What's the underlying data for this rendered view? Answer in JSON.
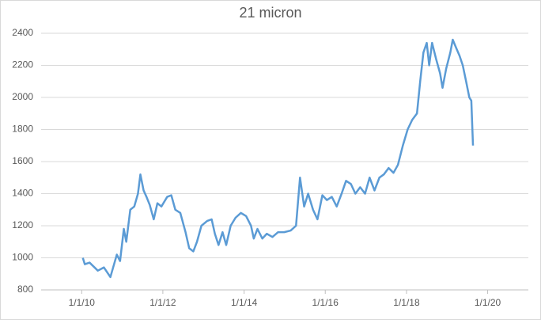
{
  "chart_data": {
    "type": "line",
    "title": "21 micron",
    "x": [
      "1/11/10",
      "1/29/10",
      "3/13/10",
      "5/26/10",
      "7/20/10",
      "9/16/10",
      "11/13/10",
      "12/12/10",
      "1/15/11",
      "2/6/11",
      "3/14/11",
      "4/19/11",
      "5/22/11",
      "6/13/11",
      "7/12/11",
      "8/7/11",
      "9/5/11",
      "10/11/11",
      "11/13/11",
      "12/19/11",
      "2/9/12",
      "3/17/12",
      "4/22/12",
      "6/6/12",
      "7/23/12",
      "8/25/12",
      "10/1/12",
      "11/3/12",
      "12/13/12",
      "2/3/13",
      "3/15/13",
      "4/13/13",
      "5/16/13",
      "6/21/13",
      "7/24/13",
      "9/2/13",
      "10/16/13",
      "12/3/13",
      "1/19/14",
      "3/4/14",
      "3/29/14",
      "5/1/14",
      "6/14/14",
      "7/24/14",
      "9/13/14",
      "11/3/14",
      "12/28/14",
      "2/24/15",
      "4/13/15",
      "5/19/15",
      "6/25/15",
      "7/31/15",
      "9/13/15",
      "10/23/15",
      "12/6/15",
      "1/16/16",
      "2/29/16",
      "4/13/16",
      "5/27/16",
      "7/6/16",
      "8/19/16",
      "9/28/16",
      "11/10/16",
      "12/24/16",
      "2/3/17",
      "3/19/17",
      "5/2/17",
      "6/11/17",
      "7/24/17",
      "9/6/17",
      "10/16/17",
      "11/29/17",
      "1/11/18",
      "2/21/18",
      "4/5/18",
      "5/4/18",
      "6/2/18",
      "7/2/18",
      "7/24/18",
      "8/19/18",
      "9/24/18",
      "10/30/18",
      "11/21/18",
      "12/24/18",
      "1/30/19",
      "2/21/19",
      "3/29/19",
      "4/23/19",
      "5/22/19",
      "6/21/19",
      "7/20/19",
      "8/7/19",
      "8/22/19"
    ],
    "series": [
      {
        "name": "21 micron",
        "color": "#5b9bd5",
        "values": [
          1000,
          960,
          970,
          920,
          940,
          880,
          1020,
          980,
          1180,
          1100,
          1300,
          1320,
          1400,
          1520,
          1420,
          1380,
          1330,
          1240,
          1340,
          1320,
          1380,
          1390,
          1300,
          1280,
          1160,
          1060,
          1040,
          1100,
          1200,
          1230,
          1240,
          1150,
          1080,
          1160,
          1080,
          1200,
          1250,
          1280,
          1260,
          1200,
          1120,
          1180,
          1120,
          1150,
          1130,
          1160,
          1160,
          1170,
          1200,
          1500,
          1320,
          1400,
          1300,
          1240,
          1390,
          1360,
          1380,
          1320,
          1400,
          1480,
          1460,
          1400,
          1440,
          1400,
          1500,
          1420,
          1500,
          1520,
          1560,
          1530,
          1580,
          1700,
          1800,
          1860,
          1900,
          2100,
          2280,
          2340,
          2200,
          2340,
          2240,
          2150,
          2060,
          2180,
          2280,
          2360,
          2300,
          2260,
          2200,
          2100,
          2000,
          1980,
          1700
        ]
      }
    ],
    "xlim": [
      "1/1/09",
      "1/1/21"
    ],
    "xticks": [
      "1/1/10",
      "1/1/12",
      "1/1/14",
      "1/1/16",
      "1/1/18",
      "1/1/20"
    ],
    "ylim": [
      800,
      2400
    ],
    "yticks": [
      800,
      1000,
      1200,
      1400,
      1600,
      1800,
      2000,
      2200,
      2400
    ],
    "grid": true
  }
}
